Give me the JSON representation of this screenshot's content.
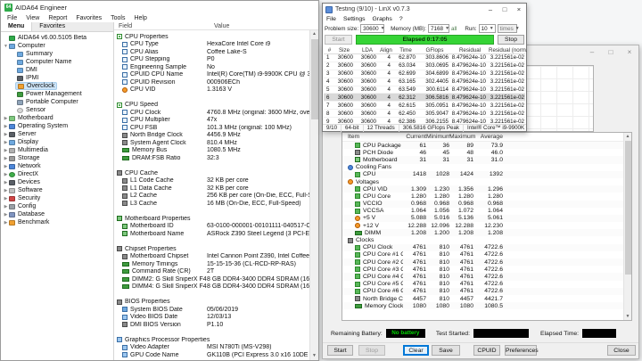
{
  "colors": {
    "progress_green": "#35d435",
    "lcd_green": "#00d800",
    "tree_selection": "#cde4f7",
    "linx_selected_row": "#d9d9d9"
  },
  "aida": {
    "title": "AIDA64 Engineer",
    "menu": [
      "File",
      "View",
      "Report",
      "Favorites",
      "Tools",
      "Help"
    ],
    "tabs": [
      "Menu",
      "Favorites"
    ],
    "columns": {
      "field": "Field",
      "value": "Value"
    },
    "tree": [
      {
        "label": "AIDA64 v6.00.5105 Beta",
        "icon": "aida",
        "level": 0,
        "arrow": ""
      },
      {
        "label": "Computer",
        "icon": "computer",
        "level": 0,
        "arrow": "expanded"
      },
      {
        "label": "Summary",
        "icon": "summary",
        "level": 1
      },
      {
        "label": "Computer Name",
        "icon": "computer-name",
        "level": 1
      },
      {
        "label": "DMI",
        "icon": "dmi",
        "level": 1
      },
      {
        "label": "IPMI",
        "icon": "ipmi",
        "level": 1
      },
      {
        "label": "Overclock",
        "icon": "overclock",
        "level": 1,
        "selected": true
      },
      {
        "label": "Power Management",
        "icon": "power",
        "level": 1
      },
      {
        "label": "Portable Computer",
        "icon": "portable",
        "level": 1
      },
      {
        "label": "Sensor",
        "icon": "sensor",
        "level": 1
      },
      {
        "label": "Motherboard",
        "icon": "motherboard",
        "level": 0,
        "arrow": "collapsed"
      },
      {
        "label": "Operating System",
        "icon": "os",
        "level": 0,
        "arrow": "collapsed"
      },
      {
        "label": "Server",
        "icon": "server",
        "level": 0,
        "arrow": "collapsed"
      },
      {
        "label": "Display",
        "icon": "display",
        "level": 0,
        "arrow": "collapsed"
      },
      {
        "label": "Multimedia",
        "icon": "multimedia",
        "level": 0,
        "arrow": "collapsed"
      },
      {
        "label": "Storage",
        "icon": "storage",
        "level": 0,
        "arrow": "collapsed"
      },
      {
        "label": "Network",
        "icon": "network",
        "level": 0,
        "arrow": "collapsed"
      },
      {
        "label": "DirectX",
        "icon": "directx",
        "level": 0,
        "arrow": "collapsed"
      },
      {
        "label": "Devices",
        "icon": "devices",
        "level": 0,
        "arrow": "collapsed"
      },
      {
        "label": "Software",
        "icon": "software",
        "level": 0,
        "arrow": "collapsed"
      },
      {
        "label": "Security",
        "icon": "security",
        "level": 0,
        "arrow": "collapsed"
      },
      {
        "label": "Config",
        "icon": "config",
        "level": 0,
        "arrow": "collapsed"
      },
      {
        "label": "Database",
        "icon": "database",
        "level": 0,
        "arrow": "collapsed"
      },
      {
        "label": "Benchmark",
        "icon": "benchmark",
        "level": 0,
        "arrow": "collapsed"
      }
    ],
    "rows": [
      {
        "t": "g",
        "icon": "group",
        "label": "CPU Properties"
      },
      {
        "t": "f",
        "icon": "field",
        "label": "CPU Type",
        "value": "HexaCore Intel Core i9"
      },
      {
        "t": "f",
        "icon": "field",
        "label": "CPU Alias",
        "value": "Coffee Lake-S"
      },
      {
        "t": "f",
        "icon": "field",
        "label": "CPU Stepping",
        "value": "P0"
      },
      {
        "t": "f",
        "icon": "field",
        "label": "Engineering Sample",
        "value": "No"
      },
      {
        "t": "f",
        "icon": "field",
        "label": "CPUID CPU Name",
        "value": "Intel(R) Core(TM) i9-9900K CPU @ 3.60GHz"
      },
      {
        "t": "f",
        "icon": "field",
        "label": "CPUID Revision",
        "value": "000906ECh"
      },
      {
        "t": "f",
        "icon": "sensor",
        "label": "CPU VID",
        "value": "1.3163 V"
      },
      {
        "t": "s"
      },
      {
        "t": "g",
        "icon": "group",
        "label": "CPU Speed"
      },
      {
        "t": "f",
        "icon": "field",
        "label": "CPU Clock",
        "value": "4760.8 MHz  (original: 3600 MHz, overclock: 32%)"
      },
      {
        "t": "f",
        "icon": "field",
        "label": "CPU Multiplier",
        "value": "47x"
      },
      {
        "t": "f",
        "icon": "field",
        "label": "CPU FSB",
        "value": "101.3 MHz  (original: 100 MHz)"
      },
      {
        "t": "f",
        "icon": "chip",
        "label": "North Bridge Clock",
        "value": "4456.9 MHz"
      },
      {
        "t": "f",
        "icon": "chip",
        "label": "System Agent Clock",
        "value": "810.4 MHz"
      },
      {
        "t": "f",
        "icon": "mem",
        "label": "Memory Bus",
        "value": "1080.5 MHz"
      },
      {
        "t": "f",
        "icon": "mem",
        "label": "DRAM:FSB Ratio",
        "value": "32:3"
      },
      {
        "t": "s"
      },
      {
        "t": "g",
        "icon": "chip",
        "label": "CPU Cache"
      },
      {
        "t": "f",
        "icon": "chip",
        "label": "L1 Code Cache",
        "value": "32 KB per core"
      },
      {
        "t": "f",
        "icon": "chip",
        "label": "L1 Data Cache",
        "value": "32 KB per core"
      },
      {
        "t": "f",
        "icon": "chip",
        "label": "L2 Cache",
        "value": "256 KB per core  (On-Die, ECC, Full-Speed)"
      },
      {
        "t": "f",
        "icon": "chip",
        "label": "L3 Cache",
        "value": "16 MB  (On-Die, ECC, Full-Speed)"
      },
      {
        "t": "s"
      },
      {
        "t": "g",
        "icon": "mobo",
        "label": "Motherboard Properties"
      },
      {
        "t": "f",
        "icon": "mobo",
        "label": "Motherboard ID",
        "value": "63-0100-000001-00101111-040517-Chipset$0AAAA000_BIOS"
      },
      {
        "t": "f",
        "icon": "mobo",
        "label": "Motherboard Name",
        "value": "ASRock Z390 Steel Legend  (3 PCI-E x1, 2 PCI-E x16, 2 M.2, 6 ..."
      },
      {
        "t": "s"
      },
      {
        "t": "g",
        "icon": "chip",
        "label": "Chipset Properties"
      },
      {
        "t": "f",
        "icon": "chip",
        "label": "Motherboard Chipset",
        "value": "Intel Cannon Point Z390, Intel Coffee Lake-S"
      },
      {
        "t": "f",
        "icon": "mem",
        "label": "Memory Timings",
        "value": "15-15-15-36  (CL-RCD-RP-RAS)"
      },
      {
        "t": "f",
        "icon": "mem",
        "label": "Command Rate (CR)",
        "value": "2T"
      },
      {
        "t": "f",
        "icon": "mem",
        "label": "DIMM2: G Skill SniperX F4-3400C16-8G...",
        "value": "8 GB DDR4-3400 DDR4 SDRAM  (16-16-16-36 @ 1700 MHz)"
      },
      {
        "t": "f",
        "icon": "mem",
        "label": "DIMM4: G Skill SniperX F4-3400C16-8G...",
        "value": "8 GB DDR4-3400 DDR4 SDRAM  (16-16-16-36 @ 1700 MHz)"
      },
      {
        "t": "s"
      },
      {
        "t": "g",
        "icon": "chip",
        "label": "BIOS Properties"
      },
      {
        "t": "f",
        "icon": "monitor",
        "label": "System BIOS Date",
        "value": "05/06/2019"
      },
      {
        "t": "f",
        "icon": "display",
        "label": "Video BIOS Date",
        "value": "12/03/13"
      },
      {
        "t": "f",
        "icon": "chip",
        "label": "DMI BIOS Version",
        "value": "P1.10"
      },
      {
        "t": "s"
      },
      {
        "t": "g",
        "icon": "display",
        "label": "Graphics Processor Properties"
      },
      {
        "t": "f",
        "icon": "display",
        "label": "Video Adapter",
        "value": "MSI N780Ti (MS-V298)"
      },
      {
        "t": "f",
        "icon": "display",
        "label": "GPU Code Name",
        "value": "GK110B  (PCI Express 3.0 x16 10DE / 100A, Rev B1)"
      }
    ]
  },
  "linx": {
    "title": "Testing (9/10) - LinX v0.7.3",
    "menu": [
      "File",
      "Settings",
      "Graphs",
      "?"
    ],
    "controls": {
      "problem_size_label": "Problem size:",
      "problem_size": "30600",
      "memory_label": "Memory (MB):",
      "memory": "7168",
      "all_label": "all",
      "run_label": "Run:",
      "run": "10",
      "times": "times"
    },
    "start_label": "Start",
    "stop_label": "Stop",
    "progress_label": "Elapsed 0:17:05",
    "table": {
      "headers": [
        "#",
        "Size",
        "LDA",
        "Align",
        "Time",
        "GFlops",
        "Residual",
        "Residual (norm.)"
      ],
      "selected_index": 5,
      "rows": [
        [
          "1",
          "30600",
          "30600",
          "4",
          "62.870",
          "303.8606",
          "8.479624e-10",
          "3.221561e-02"
        ],
        [
          "2",
          "30600",
          "30600",
          "4",
          "63.034",
          "303.0695",
          "8.479624e-10",
          "3.221561e-02"
        ],
        [
          "3",
          "30600",
          "30600",
          "4",
          "62.699",
          "304.6899",
          "8.479624e-10",
          "3.221561e-02"
        ],
        [
          "4",
          "30600",
          "30600",
          "4",
          "63.165",
          "302.4405",
          "8.479624e-10",
          "3.221561e-02"
        ],
        [
          "5",
          "30600",
          "30600",
          "4",
          "63.549",
          "300.6114",
          "8.479624e-10",
          "3.221561e-02"
        ],
        [
          "6",
          "30600",
          "30600",
          "4",
          "62.312",
          "306.5816",
          "8.479624e-10",
          "3.221561e-02"
        ],
        [
          "7",
          "30600",
          "30600",
          "4",
          "62.615",
          "305.0951",
          "8.479624e-10",
          "3.221561e-02"
        ],
        [
          "8",
          "30600",
          "30600",
          "4",
          "62.450",
          "305.9047",
          "8.479624e-10",
          "3.221561e-02"
        ],
        [
          "9",
          "30600",
          "30600",
          "4",
          "62.386",
          "306.2155",
          "8.479624e-10",
          "3.221561e-02"
        ]
      ]
    },
    "status": [
      "9/10",
      "64-bit",
      "12 Threads",
      "306.5816 GFlops Peak",
      "Intel® Core™ i9-9900K"
    ]
  },
  "stability": {
    "stats": {
      "headers": [
        "Item",
        "Current",
        "Minimum",
        "Maximum",
        "Average"
      ],
      "rows": [
        {
          "label": "CPU Package",
          "icon": "temp",
          "indent": 1,
          "values": [
            "61",
            "36",
            "89",
            "73.9"
          ]
        },
        {
          "label": "PCH Diode",
          "icon": "chip",
          "indent": 1,
          "values": [
            "46",
            "45",
            "48",
            "46.0"
          ]
        },
        {
          "label": "Motherboard",
          "icon": "mobo",
          "indent": 1,
          "values": [
            "31",
            "31",
            "31",
            "31.0"
          ]
        },
        {
          "label": "Cooling Fans",
          "icon": "fan",
          "indent": 0,
          "group": true
        },
        {
          "label": "CPU",
          "icon": "temp",
          "indent": 1,
          "values": [
            "1418",
            "1028",
            "1424",
            "1392"
          ]
        },
        {
          "label": "Voltages",
          "icon": "volt",
          "indent": 0,
          "group": true
        },
        {
          "label": "CPU VID",
          "icon": "temp",
          "indent": 1,
          "values": [
            "1.309",
            "1.230",
            "1.356",
            "1.296"
          ]
        },
        {
          "label": "CPU Core",
          "icon": "temp",
          "indent": 1,
          "values": [
            "1.280",
            "1.280",
            "1.280",
            "1.280"
          ]
        },
        {
          "label": "VCCIO",
          "icon": "temp",
          "indent": 1,
          "values": [
            "0.968",
            "0.968",
            "0.968",
            "0.968"
          ]
        },
        {
          "label": "VCCSA",
          "icon": "temp",
          "indent": 1,
          "values": [
            "1.064",
            "1.056",
            "1.072",
            "1.064"
          ]
        },
        {
          "label": "+5 V",
          "icon": "volt",
          "indent": 1,
          "values": [
            "5.088",
            "5.016",
            "5.136",
            "5.061"
          ]
        },
        {
          "label": "+12 V",
          "icon": "volt",
          "indent": 1,
          "values": [
            "12.288",
            "12.096",
            "12.288",
            "12.230"
          ]
        },
        {
          "label": "DIMM",
          "icon": "mem",
          "indent": 1,
          "values": [
            "1.208",
            "1.200",
            "1.208",
            "1.208"
          ]
        },
        {
          "label": "Clocks",
          "icon": "chip",
          "indent": 0,
          "group": true
        },
        {
          "label": "CPU Clock",
          "icon": "temp",
          "indent": 1,
          "values": [
            "4761",
            "810",
            "4761",
            "4722.6"
          ]
        },
        {
          "label": "CPU Core #1 Clock",
          "icon": "temp",
          "indent": 1,
          "values": [
            "4761",
            "810",
            "4761",
            "4722.6"
          ]
        },
        {
          "label": "CPU Core #2 Clock",
          "icon": "temp",
          "indent": 1,
          "values": [
            "4761",
            "810",
            "4761",
            "4722.6"
          ]
        },
        {
          "label": "CPU Core #3 Clock",
          "icon": "temp",
          "indent": 1,
          "values": [
            "4761",
            "810",
            "4761",
            "4722.6"
          ]
        },
        {
          "label": "CPU Core #4 Clock",
          "icon": "temp",
          "indent": 1,
          "values": [
            "4761",
            "810",
            "4761",
            "4722.6"
          ]
        },
        {
          "label": "CPU Core #5 Clock",
          "icon": "temp",
          "indent": 1,
          "values": [
            "4761",
            "810",
            "4761",
            "4722.6"
          ]
        },
        {
          "label": "CPU Core #6 Clock",
          "icon": "temp",
          "indent": 1,
          "values": [
            "4761",
            "810",
            "4761",
            "4722.6"
          ]
        },
        {
          "label": "North Bridge Clock",
          "icon": "chip",
          "indent": 1,
          "values": [
            "4457",
            "810",
            "4457",
            "4421.7"
          ]
        },
        {
          "label": "Memory Clock",
          "icon": "mem",
          "indent": 1,
          "values": [
            "1080",
            "1080",
            "1080",
            "1080.5"
          ]
        }
      ]
    },
    "footer": {
      "battery_label": "Remaining Battery:",
      "battery_value": "No battery",
      "test_started_label": "Test Started:",
      "elapsed_label": "Elapsed Time:"
    },
    "buttons": [
      "Start",
      "Stop",
      "Clear",
      "Save",
      "CPUID",
      "Preferences"
    ],
    "close_label": "Close"
  }
}
